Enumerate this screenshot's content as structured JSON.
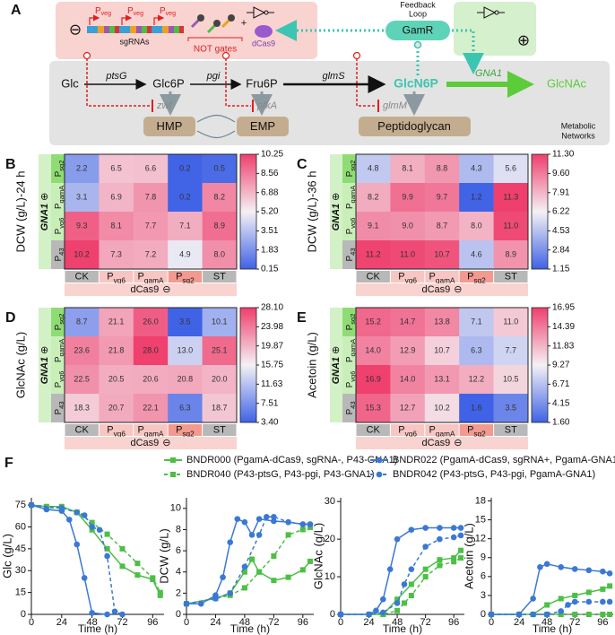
{
  "diagram": {
    "panel_label": "A",
    "repress_sign": "⊖",
    "promoters": [
      {
        "text": "P",
        "sub": "veg"
      },
      {
        "text": "P",
        "sub": "veg"
      },
      {
        "text": "P",
        "sub": "veg"
      }
    ],
    "sgrnas": "sgRNAs",
    "not_gates": "NOT gates",
    "plus": "+",
    "dcas9": "dCas9",
    "feedback": [
      "Feedback",
      "Loop"
    ],
    "gamr": "GamR",
    "activate_sign": "⊕",
    "metabolites": [
      "Glc",
      "Glc6P",
      "Fru6P",
      "GlcN6P",
      "GlcNAc"
    ],
    "enzymes": [
      "ptsG",
      "pgi",
      "glmS",
      "GNA1"
    ],
    "branch_enzymes": [
      "zwf",
      "pfkA",
      "glmM"
    ],
    "sinks": [
      "HMP",
      "EMP",
      "Peptidoglycan"
    ],
    "network_label": [
      "Metabolic",
      "Networks"
    ]
  },
  "chart_data": [
    {
      "type": "heatmap",
      "panel_label": "B",
      "ylabel": "DCW (g/L)-24 h",
      "rows": [
        {
          "text": "P",
          "sub": "sg2"
        },
        {
          "text": "P",
          "sub": "gamA"
        },
        {
          "text": "P",
          "sub": "vg6"
        },
        {
          "text": "P",
          "sub": "43"
        }
      ],
      "columns": [
        {
          "text": "CK"
        },
        {
          "text": "P",
          "sub": "vg6"
        },
        {
          "text": "P",
          "sub": "gamA"
        },
        {
          "text": "P",
          "sub": "sg2"
        },
        {
          "text": "ST"
        }
      ],
      "row_group": "GNA1",
      "row_group_sign": "⊕",
      "column_group": "dCas9",
      "column_group_sign": "⊖",
      "values": [
        [
          2.2,
          6.5,
          6.6,
          0.2,
          0.5
        ],
        [
          3.1,
          6.9,
          7.8,
          0.2,
          8.2
        ],
        [
          9.3,
          8.1,
          7.7,
          7.1,
          8.9
        ],
        [
          10.2,
          7.3,
          7.2,
          4.9,
          8.0
        ]
      ],
      "value_labels": [
        [
          "2.2",
          "6.5",
          "6.6",
          "0.2",
          "0.5"
        ],
        [
          "3.1",
          "6.9",
          "7.8",
          "0.2",
          "8.2"
        ],
        [
          "9.3",
          "8.1",
          "7.7",
          "7.1",
          "8.9"
        ],
        [
          "10.2",
          "7.3",
          "7.2",
          "4.9",
          "8.0"
        ]
      ],
      "colormap": [
        "#3f62e6",
        "#f4f1f4",
        "#ef3f6d"
      ],
      "clim": [
        0.15,
        10.25
      ],
      "cticks": [
        10.25,
        8.56,
        6.88,
        {
          "value": 5.2,
          "label": "5.20"
        },
        3.51,
        1.83,
        0.15
      ]
    },
    {
      "type": "heatmap",
      "panel_label": "C",
      "ylabel": "DCW (g/L)-36 h",
      "rows": [
        {
          "text": "P",
          "sub": "sg2"
        },
        {
          "text": "P",
          "sub": "gamA"
        },
        {
          "text": "P",
          "sub": "vg6"
        },
        {
          "text": "P",
          "sub": "43"
        }
      ],
      "columns": [
        {
          "text": "CK"
        },
        {
          "text": "P",
          "sub": "vg6"
        },
        {
          "text": "P",
          "sub": "gamA"
        },
        {
          "text": "P",
          "sub": "sg2"
        },
        {
          "text": "ST"
        }
      ],
      "row_group": "GNA1",
      "row_group_sign": "⊕",
      "column_group": "dCas9",
      "column_group_sign": "⊖",
      "values": [
        [
          4.8,
          8.1,
          8.8,
          4.3,
          5.6
        ],
        [
          8.2,
          9.9,
          9.7,
          1.2,
          11.3
        ],
        [
          9.1,
          9.0,
          8.7,
          8.0,
          11.0
        ],
        [
          11.2,
          11.0,
          10.7,
          4.6,
          8.9
        ]
      ],
      "value_labels": [
        [
          "4.8",
          "8.1",
          "8.8",
          "4.3",
          "5.6"
        ],
        [
          "8.2",
          "9.9",
          "9.7",
          "1.2",
          "11.3"
        ],
        [
          "9.1",
          "9.0",
          "8.7",
          "8.0",
          "11.0"
        ],
        [
          "11.2",
          "11.0",
          "10.7",
          "4.6",
          "8.9"
        ]
      ],
      "colormap": [
        "#3f62e6",
        "#f4f1f4",
        "#ef3f6d"
      ],
      "clim": [
        1.15,
        11.3
      ],
      "cticks": [
        {
          "value": 11.3,
          "label": "11.30"
        },
        {
          "value": 9.6,
          "label": "9.60"
        },
        7.91,
        6.22,
        4.53,
        2.84,
        1.15
      ]
    },
    {
      "type": "heatmap",
      "panel_label": "D",
      "ylabel": "GlcNAc (g/L)",
      "rows": [
        {
          "text": "P",
          "sub": "sg2"
        },
        {
          "text": "P",
          "sub": "gamA"
        },
        {
          "text": "P",
          "sub": "vg6"
        },
        {
          "text": "P",
          "sub": "43"
        }
      ],
      "columns": [
        {
          "text": "CK"
        },
        {
          "text": "P",
          "sub": "vg6"
        },
        {
          "text": "P",
          "sub": "gamA"
        },
        {
          "text": "P",
          "sub": "sg2"
        },
        {
          "text": "ST"
        }
      ],
      "row_group": "GNA1",
      "row_group_sign": "⊕",
      "column_group": "dCas9",
      "column_group_sign": "⊖",
      "values": [
        [
          8.7,
          21.1,
          26.0,
          3.5,
          10.1
        ],
        [
          23.6,
          21.8,
          28.0,
          13.0,
          25.1
        ],
        [
          22.5,
          20.5,
          20.6,
          20.8,
          20.0
        ],
        [
          18.3,
          20.7,
          22.1,
          6.3,
          18.7
        ]
      ],
      "value_labels": [
        [
          "8.7",
          "21.1",
          "26.0",
          "3.5",
          "10.1"
        ],
        [
          "23.6",
          "21.8",
          "28.0",
          "13.0",
          "25.1"
        ],
        [
          "22.5",
          "20.5",
          "20.6",
          "20.8",
          "20.0"
        ],
        [
          "18.3",
          "20.7",
          "22.1",
          "6.3",
          "18.7"
        ]
      ],
      "colormap": [
        "#3f62e6",
        "#f4f1f4",
        "#ef3f6d"
      ],
      "clim": [
        3.4,
        28.1
      ],
      "cticks": [
        {
          "value": 28.1,
          "label": "28.10"
        },
        23.98,
        19.87,
        15.75,
        11.63,
        7.51,
        {
          "value": 3.4,
          "label": "3.40"
        }
      ]
    },
    {
      "type": "heatmap",
      "panel_label": "E",
      "ylabel": "Acetoin (g/L)",
      "rows": [
        {
          "text": "P",
          "sub": "sg2"
        },
        {
          "text": "P",
          "sub": "gamA"
        },
        {
          "text": "P",
          "sub": "vg6"
        },
        {
          "text": "P",
          "sub": "43"
        }
      ],
      "columns": [
        {
          "text": "CK"
        },
        {
          "text": "P",
          "sub": "vg6"
        },
        {
          "text": "P",
          "sub": "gamA"
        },
        {
          "text": "P",
          "sub": "sg2"
        },
        {
          "text": "ST"
        }
      ],
      "row_group": "GNA1",
      "row_group_sign": "⊕",
      "column_group": "dCas9",
      "column_group_sign": "⊖",
      "values": [
        [
          15.2,
          14.7,
          13.8,
          7.1,
          11.0
        ],
        [
          14.0,
          12.9,
          10.7,
          6.3,
          7.7
        ],
        [
          16.9,
          14.0,
          13.1,
          12.2,
          10.5
        ],
        [
          15.3,
          12.7,
          10.2,
          1.6,
          3.5
        ]
      ],
      "value_labels": [
        [
          "15.2",
          "14.7",
          "13.8",
          "7.1",
          "11.0"
        ],
        [
          "14.0",
          "12.9",
          "10.7",
          "6.3",
          "7.7"
        ],
        [
          "16.9",
          "14.0",
          "13.1",
          "12.2",
          "10.5"
        ],
        [
          "15.3",
          "12.7",
          "10.2",
          "1.6",
          "3.5"
        ]
      ],
      "colormap": [
        "#3f62e6",
        "#f4f1f4",
        "#ef3f6d"
      ],
      "clim": [
        1.6,
        16.95
      ],
      "cticks": [
        16.95,
        14.39,
        11.83,
        9.27,
        6.71,
        4.15,
        {
          "value": 1.6,
          "label": "1.60"
        }
      ]
    },
    {
      "type": "line",
      "panel_label": "F",
      "xlabel": "Time (h)",
      "xlim": [
        0,
        105
      ],
      "xticks": [
        0,
        24,
        48,
        72,
        96
      ],
      "series": [
        {
          "name": "BNDR000 (PgamA-dCas9, sgRNA-, P43-GNA1)",
          "color": "#4cbf45",
          "line": "solid",
          "marker": "square"
        },
        {
          "name": "BNDR040 (P43-ptsG, P43-pgi, P43-GNA1)",
          "color": "#4cbf45",
          "line": "dashed",
          "marker": "square"
        },
        {
          "name": "BNDR022 (PgamA-dCas9, sgRNA+, PgamA-GNA1)",
          "color": "#3a78d4",
          "line": "solid",
          "marker": "circle"
        },
        {
          "name": "BNDR042 (P43-ptsG, P43-pgi, PgamA-GNA1)",
          "color": "#3a78d4",
          "line": "dashed",
          "marker": "circle"
        }
      ],
      "subplots": [
        {
          "ylabel": "Glc (g/L)",
          "ylim": [
            0,
            80
          ],
          "yticks": [
            0,
            15,
            30,
            45,
            60,
            75
          ],
          "data": [
            {
              "x": [
                0,
                12,
                24,
                36,
                48,
                60,
                72,
                84,
                96,
                102
              ],
              "values": [
                75,
                74,
                74,
                70,
                58,
                45,
                33,
                27,
                24,
                13
              ]
            },
            {
              "x": [
                0,
                12,
                24,
                36,
                48,
                60,
                72,
                84,
                96,
                102
              ],
              "values": [
                75,
                73,
                73,
                70,
                63,
                55,
                45,
                35,
                25,
                15
              ]
            },
            {
              "x": [
                0,
                12,
                24,
                30,
                36,
                42,
                48,
                60
              ],
              "values": [
                75,
                72,
                71,
                65,
                48,
                25,
                1,
                0
              ]
            },
            {
              "x": [
                0,
                24,
                36,
                42,
                48,
                54,
                60,
                66,
                72
              ],
              "values": [
                75,
                73,
                70,
                68,
                60,
                58,
                40,
                2,
                0
              ]
            }
          ]
        },
        {
          "ylabel": "DCW (g/L)",
          "ylim": [
            0,
            11
          ],
          "yticks": [
            0,
            2,
            4,
            6,
            8,
            10
          ],
          "data": [
            {
              "x": [
                0,
                24,
                36,
                48,
                54,
                60,
                72,
                84,
                96,
                102
              ],
              "values": [
                1,
                1.5,
                2,
                4,
                5.2,
                4,
                3.2,
                3.5,
                4.2,
                5
              ]
            },
            {
              "x": [
                0,
                24,
                36,
                48,
                60,
                72,
                84,
                96,
                102
              ],
              "values": [
                1,
                1.5,
                1.8,
                2.5,
                4,
                5.5,
                7.5,
                8,
                8.2
              ]
            },
            {
              "x": [
                0,
                12,
                24,
                30,
                36,
                42,
                48,
                54,
                60,
                72,
                84,
                96,
                102
              ],
              "values": [
                1,
                1,
                1.8,
                3.5,
                6.8,
                9,
                8.7,
                7.5,
                9,
                8.8,
                8.7,
                8.5,
                8.5
              ]
            },
            {
              "x": [
                0,
                24,
                36,
                48,
                60,
                66,
                72,
                84,
                96,
                102
              ],
              "values": [
                1,
                1.5,
                2,
                4.5,
                7.5,
                9.2,
                9.2,
                8.7,
                8.5,
                8.5
              ]
            }
          ]
        },
        {
          "ylabel": "GlcNAc (g/L)",
          "ylim": [
            0,
            31
          ],
          "yticks": [
            0,
            10,
            20,
            30
          ],
          "data": [
            {
              "x": [
                0,
                24,
                36,
                48,
                60,
                72,
                84,
                96,
                102
              ],
              "values": [
                0,
                0,
                0,
                4,
                8,
                12,
                14.5,
                15,
                17
              ]
            },
            {
              "x": [
                0,
                24,
                36,
                48,
                54,
                60,
                72,
                84,
                96,
                102
              ],
              "values": [
                0,
                0,
                0,
                1,
                3,
                5,
                10,
                13,
                14,
                15
              ]
            },
            {
              "x": [
                0,
                24,
                30,
                36,
                42,
                48,
                60,
                72,
                84,
                96,
                102
              ],
              "values": [
                0,
                0,
                1,
                4,
                12,
                20,
                22.5,
                23,
                23,
                23,
                23
              ]
            },
            {
              "x": [
                0,
                24,
                36,
                48,
                54,
                60,
                72,
                84,
                96,
                102
              ],
              "values": [
                0,
                0,
                0.5,
                3,
                8,
                12,
                18,
                20,
                20.5,
                21
              ]
            }
          ]
        },
        {
          "ylabel": "Acetoin (g/L)",
          "ylim": [
            0,
            18.5
          ],
          "yticks": [
            0,
            3,
            6,
            9,
            12,
            15,
            18
          ],
          "data": [
            {
              "x": [
                0,
                24,
                36,
                48,
                60,
                72,
                84,
                96,
                102
              ],
              "values": [
                0,
                0,
                0,
                1.5,
                2.5,
                3,
                3.5,
                4,
                4.5
              ]
            },
            {
              "x": [
                0,
                24,
                36,
                48,
                60,
                72,
                84,
                96,
                102
              ],
              "values": [
                0,
                0,
                0,
                0,
                0,
                0,
                0,
                0,
                0
              ]
            },
            {
              "x": [
                0,
                24,
                36,
                42,
                48,
                60,
                72,
                84,
                96,
                102
              ],
              "values": [
                0,
                0,
                2.5,
                7.5,
                8,
                7.5,
                7.2,
                7,
                6.8,
                6.5
              ]
            },
            {
              "x": [
                0,
                24,
                36,
                48,
                60,
                66,
                72,
                84,
                96,
                102
              ],
              "values": [
                0,
                0,
                0,
                0,
                0.5,
                1.5,
                2,
                2,
                2,
                2
              ]
            }
          ]
        }
      ]
    }
  ]
}
